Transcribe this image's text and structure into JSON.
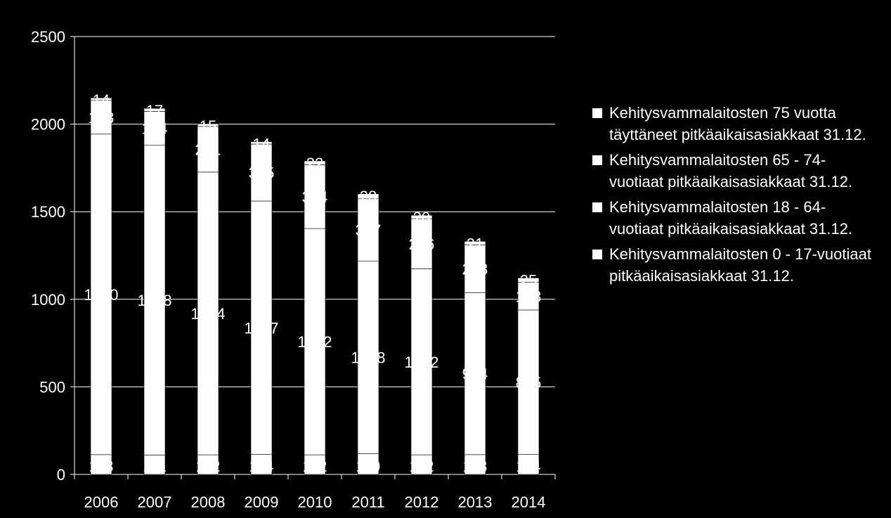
{
  "chart_data": {
    "type": "bar",
    "stacked": true,
    "categories": [
      "2006",
      "2007",
      "2008",
      "2009",
      "2010",
      "2011",
      "2012",
      "2013",
      "2014"
    ],
    "ylim": [
      0,
      2500
    ],
    "yticks": [
      0,
      500,
      1000,
      1500,
      2000,
      2500
    ],
    "grid": true,
    "legend_position": "right",
    "bar_color": "#ffffff",
    "series": [
      {
        "name": "Kehitysvammalaitosten 0 - 17-vuotiaat pitkäaikaisasiakkaat 31.12.",
        "values": [
          113,
          111,
          112,
          114,
          112,
          119,
          112,
          113,
          114
        ],
        "labels": [
          "113",
          "111",
          "112",
          "114",
          "112",
          "119",
          "112",
          "113",
          "114"
        ]
      },
      {
        "name": "Kehitysvammalaitosten 18 - 64-vuotiaat pitkäaikaisasiakkaat 31.12.",
        "values": [
          1830,
          1768,
          1614,
          1447,
          1292,
          1098,
          1062,
          924,
          825
        ],
        "labels": [
          "1830",
          "1768",
          "1614",
          "1447",
          "1292",
          "1098",
          "1062",
          "924",
          "825"
        ]
      },
      {
        "name": "Kehitysvammalaitosten 65 - 74-vuotiaat pitkäaikaisasiakkaat 31.12.",
        "values": [
          193,
          194,
          261,
          325,
          364,
          357,
          286,
          273,
          158
        ],
        "labels": [
          "193",
          "194",
          "261",
          "325",
          "364",
          "357",
          "286",
          "273",
          "158"
        ]
      },
      {
        "name": "Kehitysvammalaitosten 75 vuotta täyttäneet pitkäaikaisasiakkaat 31.12.",
        "values": [
          14,
          17,
          15,
          14,
          22,
          28,
          20,
          21,
          25
        ],
        "labels": [
          "14",
          "17",
          "15",
          "14",
          "22",
          "28",
          "20",
          "21",
          "25"
        ]
      }
    ]
  },
  "legend": {
    "items": [
      "Kehitysvammalaitosten 75 vuotta täyttäneet pitkäaikaisasiakkaat 31.12.",
      "Kehitysvammalaitosten 65 - 74-vuotiaat pitkäaikaisasiakkaat 31.12.",
      "Kehitysvammalaitosten 18 - 64-vuotiaat pitkäaikaisasiakkaat 31.12.",
      "Kehitysvammalaitosten 0 - 17-vuotiaat pitkäaikaisasiakkaat 31.12."
    ]
  }
}
